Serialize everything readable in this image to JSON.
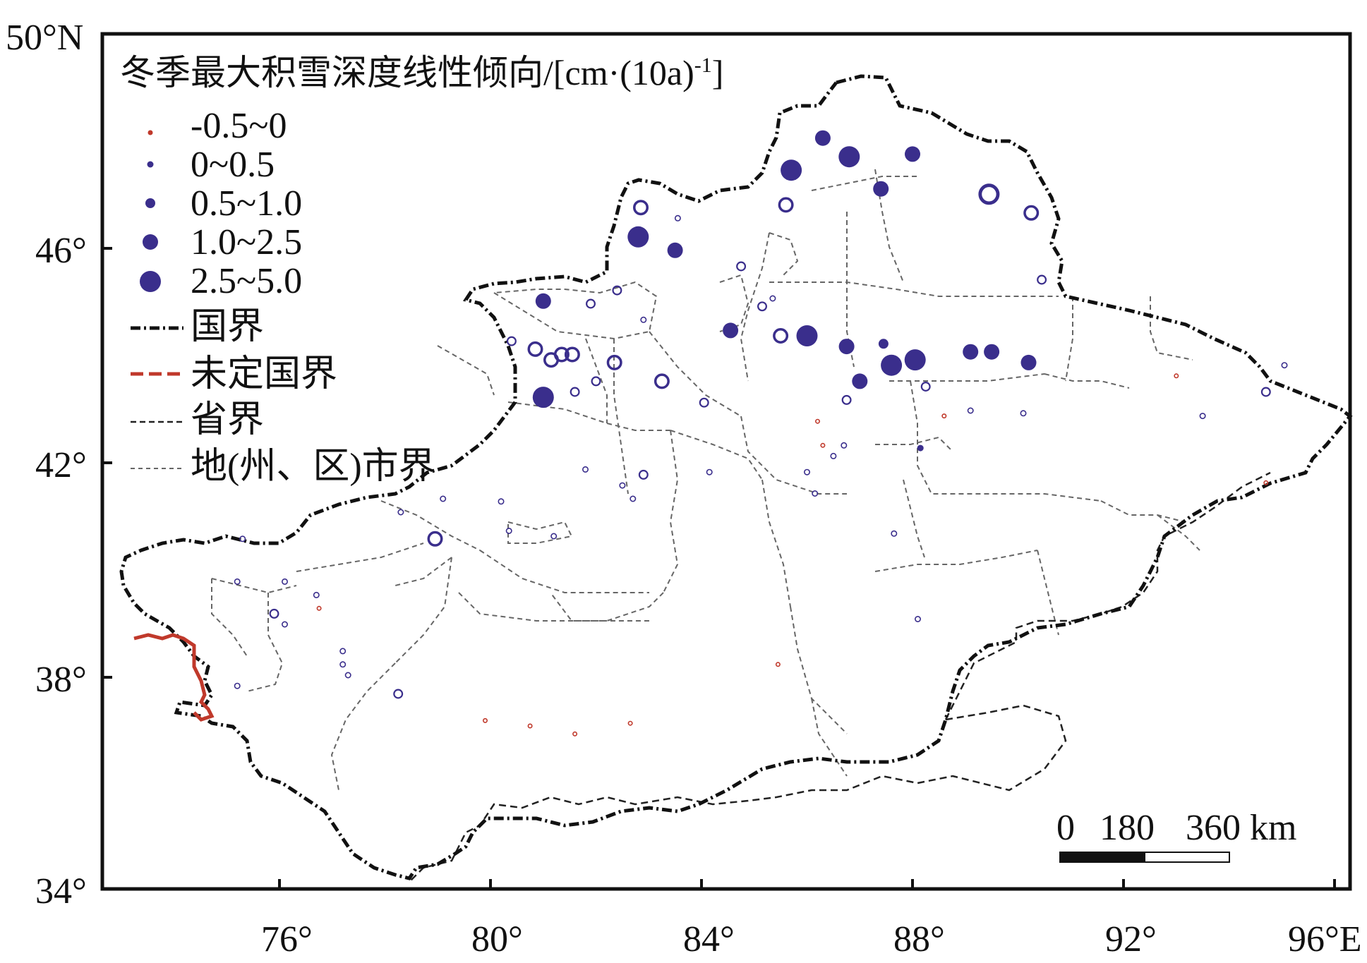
{
  "legend": {
    "title": "冬季最大积雪深度线性倾向/[cm·(10a)",
    "title_sup": "-1",
    "title_end": "]",
    "classes": [
      {
        "label": "-0.5~0",
        "color": "#c0392b",
        "size_class": "xs"
      },
      {
        "label": "0~0.5",
        "color": "#3a2e8c",
        "size_class": "s"
      },
      {
        "label": "0.5~1.0",
        "color": "#3a2e8c",
        "size_class": "m"
      },
      {
        "label": "1.0~2.5",
        "color": "#3a2e8c",
        "size_class": "l"
      },
      {
        "label": "2.5~5.0",
        "color": "#3a2e8c",
        "size_class": "xl"
      }
    ],
    "lines": [
      {
        "label": "国界",
        "style": "dash-dot",
        "color": "#111111"
      },
      {
        "label": "未定国界",
        "style": "dashed",
        "color": "#c0392b"
      },
      {
        "label": "省界",
        "style": "dashed",
        "color": "#111111"
      },
      {
        "label": "地(州、区)市界",
        "style": "dashed-thin",
        "color": "#555555"
      }
    ]
  },
  "axes": {
    "x_ticks": [
      "76°",
      "80°",
      "84°",
      "88°",
      "92°",
      "96°E"
    ],
    "y_ticks": [
      "50°N",
      "46°",
      "42°",
      "38°",
      "34°"
    ],
    "x_values": [
      76,
      80,
      84,
      88,
      92,
      96
    ],
    "y_values": [
      50,
      46,
      42,
      38,
      34
    ],
    "lon_range": [
      73.3,
      96.5
    ],
    "lat_range": [
      34.0,
      50.0
    ]
  },
  "scale_bar": {
    "labels": [
      "0",
      "180",
      "360 km"
    ]
  },
  "stations": [
    {
      "lon": 86.3,
      "lat": 48.05,
      "cls": 3,
      "filled": true
    },
    {
      "lon": 86.8,
      "lat": 47.7,
      "cls": 4,
      "filled": true
    },
    {
      "lon": 85.7,
      "lat": 47.45,
      "cls": 4,
      "filled": true
    },
    {
      "lon": 88.0,
      "lat": 47.75,
      "cls": 3,
      "filled": true
    },
    {
      "lon": 87.4,
      "lat": 47.1,
      "cls": 3,
      "filled": true
    },
    {
      "lon": 89.45,
      "lat": 47.0,
      "cls": 4,
      "filled": false
    },
    {
      "lon": 90.25,
      "lat": 46.65,
      "cls": 3,
      "filled": false
    },
    {
      "lon": 85.6,
      "lat": 46.8,
      "cls": 3,
      "filled": false
    },
    {
      "lon": 82.85,
      "lat": 46.75,
      "cls": 3,
      "filled": false
    },
    {
      "lon": 83.55,
      "lat": 46.55,
      "cls": 1,
      "filled": false
    },
    {
      "lon": 82.8,
      "lat": 46.2,
      "cls": 4,
      "filled": true
    },
    {
      "lon": 83.5,
      "lat": 45.95,
      "cls": 3,
      "filled": true
    },
    {
      "lon": 84.75,
      "lat": 45.65,
      "cls": 2,
      "filled": false
    },
    {
      "lon": 90.45,
      "lat": 45.4,
      "cls": 2,
      "filled": false
    },
    {
      "lon": 82.4,
      "lat": 45.2,
      "cls": 2,
      "filled": false
    },
    {
      "lon": 81.0,
      "lat": 45.0,
      "cls": 3,
      "filled": true
    },
    {
      "lon": 81.9,
      "lat": 44.95,
      "cls": 2,
      "filled": false
    },
    {
      "lon": 85.35,
      "lat": 45.05,
      "cls": 1,
      "filled": false
    },
    {
      "lon": 85.15,
      "lat": 44.9,
      "cls": 2,
      "filled": false
    },
    {
      "lon": 82.9,
      "lat": 44.65,
      "cls": 1,
      "filled": false
    },
    {
      "lon": 84.55,
      "lat": 44.45,
      "cls": 3,
      "filled": true
    },
    {
      "lon": 85.5,
      "lat": 44.35,
      "cls": 3,
      "filled": false
    },
    {
      "lon": 86.0,
      "lat": 44.35,
      "cls": 4,
      "filled": true
    },
    {
      "lon": 86.75,
      "lat": 44.15,
      "cls": 3,
      "filled": true
    },
    {
      "lon": 87.45,
      "lat": 44.2,
      "cls": 2,
      "filled": true
    },
    {
      "lon": 87.6,
      "lat": 43.8,
      "cls": 4,
      "filled": true
    },
    {
      "lon": 88.05,
      "lat": 43.9,
      "cls": 4,
      "filled": true
    },
    {
      "lon": 89.1,
      "lat": 44.05,
      "cls": 3,
      "filled": true
    },
    {
      "lon": 89.5,
      "lat": 44.05,
      "cls": 3,
      "filled": true
    },
    {
      "lon": 90.2,
      "lat": 43.85,
      "cls": 3,
      "filled": true
    },
    {
      "lon": 80.4,
      "lat": 44.25,
      "cls": 2,
      "filled": false
    },
    {
      "lon": 80.85,
      "lat": 44.1,
      "cls": 3,
      "filled": false
    },
    {
      "lon": 81.15,
      "lat": 43.9,
      "cls": 3,
      "filled": false
    },
    {
      "lon": 81.35,
      "lat": 44.0,
      "cls": 3,
      "filled": false
    },
    {
      "lon": 81.55,
      "lat": 44.0,
      "cls": 3,
      "filled": false
    },
    {
      "lon": 82.35,
      "lat": 43.85,
      "cls": 3,
      "filled": false
    },
    {
      "lon": 83.25,
      "lat": 43.5,
      "cls": 3,
      "filled": false
    },
    {
      "lon": 82.0,
      "lat": 43.5,
      "cls": 2,
      "filled": false
    },
    {
      "lon": 81.0,
      "lat": 43.2,
      "cls": 4,
      "filled": true
    },
    {
      "lon": 81.6,
      "lat": 43.3,
      "cls": 2,
      "filled": false
    },
    {
      "lon": 87.0,
      "lat": 43.5,
      "cls": 3,
      "filled": true
    },
    {
      "lon": 88.25,
      "lat": 43.4,
      "cls": 2,
      "filled": false
    },
    {
      "lon": 86.75,
      "lat": 43.15,
      "cls": 2,
      "filled": false
    },
    {
      "lon": 84.05,
      "lat": 43.1,
      "cls": 2,
      "filled": false
    },
    {
      "lon": 89.1,
      "lat": 42.95,
      "cls": 1,
      "filled": false
    },
    {
      "lon": 90.1,
      "lat": 42.9,
      "cls": 1,
      "filled": false
    },
    {
      "lon": 88.6,
      "lat": 42.85,
      "cls": 0,
      "filled": false
    },
    {
      "lon": 86.2,
      "lat": 42.75,
      "cls": 0,
      "filled": false
    },
    {
      "lon": 93.0,
      "lat": 43.6,
      "cls": 0,
      "filled": false
    },
    {
      "lon": 95.05,
      "lat": 43.8,
      "cls": 1,
      "filled": false
    },
    {
      "lon": 94.7,
      "lat": 43.3,
      "cls": 2,
      "filled": false
    },
    {
      "lon": 93.5,
      "lat": 42.85,
      "cls": 1,
      "filled": false
    },
    {
      "lon": 86.3,
      "lat": 42.3,
      "cls": 0,
      "filled": false
    },
    {
      "lon": 86.5,
      "lat": 42.1,
      "cls": 1,
      "filled": false
    },
    {
      "lon": 86.7,
      "lat": 42.3,
      "cls": 1,
      "filled": false
    },
    {
      "lon": 88.15,
      "lat": 42.25,
      "cls": 1,
      "filled": true
    },
    {
      "lon": 86.0,
      "lat": 41.8,
      "cls": 1,
      "filled": false
    },
    {
      "lon": 84.15,
      "lat": 41.8,
      "cls": 1,
      "filled": false
    },
    {
      "lon": 81.8,
      "lat": 41.85,
      "cls": 1,
      "filled": false
    },
    {
      "lon": 82.9,
      "lat": 41.75,
      "cls": 2,
      "filled": false
    },
    {
      "lon": 82.5,
      "lat": 41.55,
      "cls": 1,
      "filled": false
    },
    {
      "lon": 82.7,
      "lat": 41.3,
      "cls": 1,
      "filled": false
    },
    {
      "lon": 86.15,
      "lat": 41.4,
      "cls": 1,
      "filled": false
    },
    {
      "lon": 94.7,
      "lat": 41.6,
      "cls": 0,
      "filled": false
    },
    {
      "lon": 79.1,
      "lat": 41.3,
      "cls": 1,
      "filled": false
    },
    {
      "lon": 80.2,
      "lat": 41.25,
      "cls": 1,
      "filled": false
    },
    {
      "lon": 78.3,
      "lat": 41.05,
      "cls": 1,
      "filled": false
    },
    {
      "lon": 80.35,
      "lat": 40.7,
      "cls": 1,
      "filled": false
    },
    {
      "lon": 81.2,
      "lat": 40.6,
      "cls": 1,
      "filled": false
    },
    {
      "lon": 78.95,
      "lat": 40.55,
      "cls": 3,
      "filled": false
    },
    {
      "lon": 87.65,
      "lat": 40.65,
      "cls": 1,
      "filled": false
    },
    {
      "lon": 75.3,
      "lat": 40.55,
      "cls": 1,
      "filled": false
    },
    {
      "lon": 75.2,
      "lat": 39.75,
      "cls": 1,
      "filled": false
    },
    {
      "lon": 76.1,
      "lat": 39.75,
      "cls": 1,
      "filled": false
    },
    {
      "lon": 76.7,
      "lat": 39.5,
      "cls": 1,
      "filled": false
    },
    {
      "lon": 76.75,
      "lat": 39.25,
      "cls": 0,
      "filled": false
    },
    {
      "lon": 75.9,
      "lat": 39.15,
      "cls": 2,
      "filled": false
    },
    {
      "lon": 76.1,
      "lat": 38.95,
      "cls": 1,
      "filled": false
    },
    {
      "lon": 88.1,
      "lat": 39.05,
      "cls": 1,
      "filled": false
    },
    {
      "lon": 77.2,
      "lat": 38.45,
      "cls": 1,
      "filled": false
    },
    {
      "lon": 77.2,
      "lat": 38.2,
      "cls": 1,
      "filled": false
    },
    {
      "lon": 77.3,
      "lat": 38.0,
      "cls": 1,
      "filled": false
    },
    {
      "lon": 85.45,
      "lat": 38.2,
      "cls": 0,
      "filled": false
    },
    {
      "lon": 75.2,
      "lat": 37.8,
      "cls": 1,
      "filled": false
    },
    {
      "lon": 78.25,
      "lat": 37.65,
      "cls": 2,
      "filled": false
    },
    {
      "lon": 79.9,
      "lat": 37.15,
      "cls": 0,
      "filled": false
    },
    {
      "lon": 80.75,
      "lat": 37.05,
      "cls": 0,
      "filled": false
    },
    {
      "lon": 81.6,
      "lat": 36.9,
      "cls": 0,
      "filled": false
    },
    {
      "lon": 82.65,
      "lat": 37.1,
      "cls": 0,
      "filled": false
    }
  ]
}
